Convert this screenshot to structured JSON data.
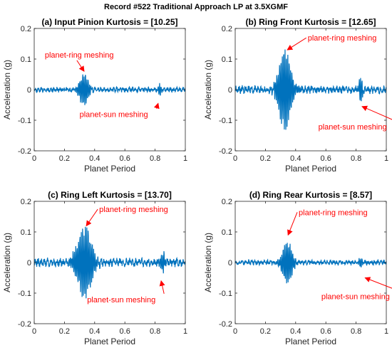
{
  "figure_title": "Record #522 Traditional Approach LP at 3.5XGMF",
  "colors": {
    "series": "#0072BD",
    "annotation": "#FF0000",
    "axis": "#262626"
  },
  "chart_data": [
    {
      "type": "line",
      "title": "(a) Input Pinion Kurtosis = [10.25]",
      "xlabel": "Planet Period",
      "ylabel": "Acceleration (g)",
      "xlim": [
        0,
        1
      ],
      "ylim": [
        -0.2,
        0.2
      ],
      "xticks": [
        "0",
        "0.2",
        "0.4",
        "0.6",
        "0.8",
        "1"
      ],
      "yticks": [
        "0.2",
        "0.1",
        "0",
        "-0.1",
        "-0.2"
      ],
      "grid": false,
      "series": [
        {
          "name": "",
          "seed": 11,
          "noise": 0.006,
          "bursts": [
            {
              "center": 0.33,
              "width": 0.035,
              "amp": 0.058
            },
            {
              "center": 0.83,
              "width": 0.012,
              "amp": 0.025
            }
          ]
        }
      ],
      "annotations": [
        {
          "text": "planet-ring meshing",
          "xy": [
            0.33,
            0.06
          ],
          "text_xy": [
            0.07,
            0.105
          ]
        },
        {
          "text": "planet-sun meshing",
          "xy": [
            0.82,
            -0.045
          ],
          "text_xy": [
            0.3,
            -0.09
          ]
        }
      ]
    },
    {
      "type": "line",
      "title": "(b) Ring Front Kurtosis = [12.65]",
      "xlabel": "Planet Period",
      "ylabel": "Acceleration (g)",
      "xlim": [
        0,
        1
      ],
      "ylim": [
        -0.2,
        0.2
      ],
      "xticks": [
        "0",
        "0.2",
        "0.4",
        "0.6",
        "0.8",
        "1"
      ],
      "yticks": [
        "0.2",
        "0.1",
        "0",
        "-0.1",
        "-0.2"
      ],
      "grid": false,
      "series": [
        {
          "name": "",
          "seed": 23,
          "noise": 0.009,
          "bursts": [
            {
              "center": 0.33,
              "width": 0.05,
              "amp": 0.145
            },
            {
              "center": 0.83,
              "width": 0.015,
              "amp": 0.045
            }
          ]
        }
      ],
      "annotations": [
        {
          "text": "planet-ring meshing",
          "xy": [
            0.345,
            0.13
          ],
          "text_xy": [
            0.48,
            0.16
          ]
        },
        {
          "text": "planet-sun meshing",
          "xy": [
            0.84,
            -0.055
          ],
          "text_xy": [
            0.55,
            -0.13
          ]
        }
      ]
    },
    {
      "type": "line",
      "title": "(c) Ring Left Kurtosis = [13.70]",
      "xlabel": "Planet Period",
      "ylabel": "Acceleration (g)",
      "xlim": [
        0,
        1
      ],
      "ylim": [
        -0.2,
        0.2
      ],
      "xticks": [
        "0",
        "0.2",
        "0.4",
        "0.6",
        "0.8",
        "1"
      ],
      "yticks": [
        "0.2",
        "0.1",
        "0",
        "-0.1",
        "-0.2"
      ],
      "grid": false,
      "series": [
        {
          "name": "",
          "seed": 37,
          "noise": 0.01,
          "bursts": [
            {
              "center": 0.33,
              "width": 0.06,
              "amp": 0.13
            },
            {
              "center": 0.85,
              "width": 0.018,
              "amp": 0.035
            }
          ]
        }
      ],
      "annotations": [
        {
          "text": "planet-ring meshing",
          "xy": [
            0.345,
            0.12
          ],
          "text_xy": [
            0.43,
            0.165
          ]
        },
        {
          "text": "planet-sun meshing",
          "xy": [
            0.84,
            -0.06
          ],
          "text_xy": [
            0.35,
            -0.13
          ]
        }
      ]
    },
    {
      "type": "line",
      "title": "(d) Ring Rear Kurtosis = [8.57]",
      "xlabel": "Planet Period",
      "ylabel": "Acceleration (g)",
      "xlim": [
        0,
        1
      ],
      "ylim": [
        -0.2,
        0.2
      ],
      "xticks": [
        "0",
        "0.2",
        "0.4",
        "0.6",
        "0.8",
        "1"
      ],
      "yticks": [
        "0.2",
        "0.1",
        "0",
        "-0.1",
        "-0.2"
      ],
      "grid": false,
      "series": [
        {
          "name": "",
          "seed": 53,
          "noise": 0.006,
          "bursts": [
            {
              "center": 0.345,
              "width": 0.04,
              "amp": 0.078
            },
            {
              "center": 0.83,
              "width": 0.012,
              "amp": 0.02
            }
          ]
        }
      ],
      "annotations": [
        {
          "text": "planet-ring meshing",
          "xy": [
            0.35,
            0.09
          ],
          "text_xy": [
            0.42,
            0.155
          ]
        },
        {
          "text": "planet-sun meshing",
          "xy": [
            0.86,
            -0.05
          ],
          "text_xy": [
            0.57,
            -0.12
          ]
        }
      ]
    }
  ]
}
